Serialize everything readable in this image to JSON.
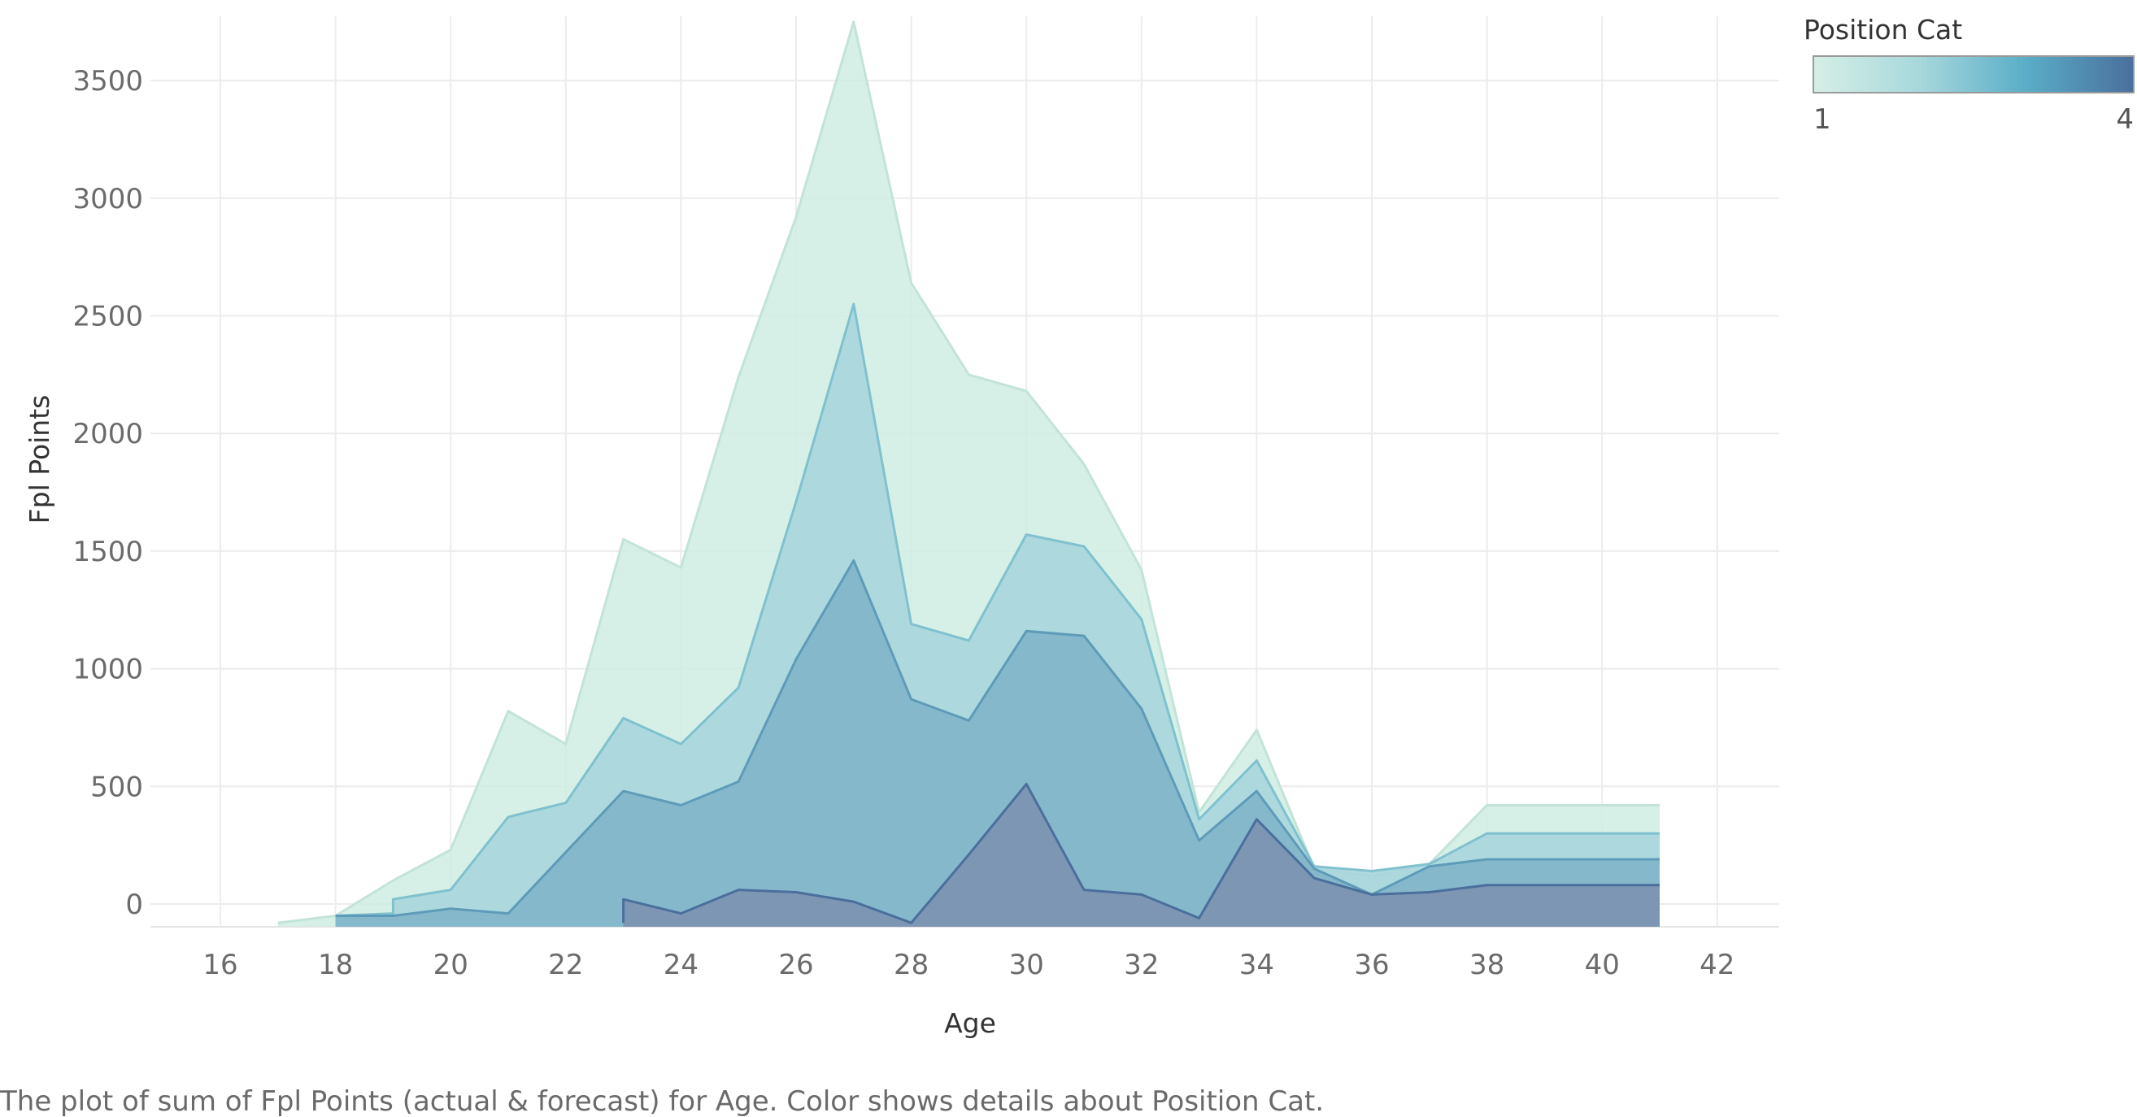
{
  "chart_data": {
    "type": "area",
    "xlabel": "Age",
    "ylabel": "Fpl Points",
    "xlim": [
      15,
      43
    ],
    "ylim": [
      -80,
      3800
    ],
    "x_ticks": [
      16,
      18,
      20,
      22,
      24,
      26,
      28,
      30,
      32,
      34,
      36,
      38,
      40,
      42
    ],
    "y_ticks": [
      0,
      500,
      1000,
      1500,
      2000,
      2500,
      3000,
      3500
    ],
    "grid": true,
    "legend": {
      "title": "Position Cat",
      "type": "continuous",
      "min_label": "1",
      "max_label": "4",
      "placement": "top-right",
      "colors": [
        "#d5efe6",
        "#a8d8dc",
        "#5aaec8",
        "#4a6f9c"
      ]
    },
    "series": [
      {
        "name": "1",
        "fill": "#d0ede3",
        "stroke": "#c2e3d9",
        "points": [
          [
            17,
            -80
          ],
          [
            18,
            -50
          ],
          [
            19,
            100
          ],
          [
            20,
            230
          ],
          [
            21,
            820
          ],
          [
            22,
            680
          ],
          [
            23,
            1550
          ],
          [
            24,
            1430
          ],
          [
            25,
            2240
          ],
          [
            26,
            2920
          ],
          [
            27,
            3750
          ],
          [
            28,
            2640
          ],
          [
            29,
            2250
          ],
          [
            30,
            2180
          ],
          [
            31,
            1870
          ],
          [
            32,
            1420
          ],
          [
            33,
            390
          ],
          [
            34,
            740
          ],
          [
            35,
            150
          ],
          [
            36,
            120
          ],
          [
            37,
            170
          ],
          [
            38,
            420
          ],
          [
            39,
            420
          ],
          [
            40,
            420
          ],
          [
            41,
            420
          ]
        ]
      },
      {
        "name": "2",
        "fill": "#a6d5dc",
        "stroke": "#80c1cf",
        "points": [
          [
            18,
            -50
          ],
          [
            19,
            -40
          ],
          [
            19,
            20
          ],
          [
            20,
            60
          ],
          [
            21,
            370
          ],
          [
            22,
            430
          ],
          [
            23,
            790
          ],
          [
            24,
            680
          ],
          [
            25,
            920
          ],
          [
            26,
            1710
          ],
          [
            27,
            2550
          ],
          [
            28,
            1190
          ],
          [
            29,
            1120
          ],
          [
            30,
            1570
          ],
          [
            31,
            1520
          ],
          [
            32,
            1210
          ],
          [
            33,
            360
          ],
          [
            34,
            610
          ],
          [
            35,
            160
          ],
          [
            36,
            140
          ],
          [
            37,
            170
          ],
          [
            38,
            300
          ],
          [
            39,
            300
          ],
          [
            40,
            300
          ],
          [
            41,
            300
          ]
        ]
      },
      {
        "name": "3",
        "fill": "#7fb2c9",
        "stroke": "#5e9bb8",
        "points": [
          [
            18,
            -50
          ],
          [
            19,
            -50
          ],
          [
            20,
            -20
          ],
          [
            21,
            -40
          ],
          [
            22,
            220
          ],
          [
            23,
            480
          ],
          [
            24,
            420
          ],
          [
            25,
            520
          ],
          [
            26,
            1040
          ],
          [
            27,
            1460
          ],
          [
            28,
            870
          ],
          [
            29,
            780
          ],
          [
            30,
            1160
          ],
          [
            31,
            1140
          ],
          [
            32,
            830
          ],
          [
            33,
            270
          ],
          [
            34,
            480
          ],
          [
            35,
            150
          ],
          [
            36,
            40
          ],
          [
            37,
            160
          ],
          [
            38,
            190
          ],
          [
            39,
            190
          ],
          [
            40,
            190
          ],
          [
            41,
            190
          ]
        ]
      },
      {
        "name": "4",
        "fill": "#7b8fae",
        "stroke": "#4a6f9c",
        "points": [
          [
            23,
            -80
          ],
          [
            23,
            20
          ],
          [
            24,
            -40
          ],
          [
            25,
            60
          ],
          [
            26,
            50
          ],
          [
            27,
            10
          ],
          [
            28,
            -80
          ],
          [
            29,
            210
          ],
          [
            30,
            510
          ],
          [
            31,
            60
          ],
          [
            32,
            40
          ],
          [
            33,
            -60
          ],
          [
            34,
            360
          ],
          [
            35,
            110
          ],
          [
            36,
            40
          ],
          [
            37,
            50
          ],
          [
            38,
            80
          ],
          [
            39,
            80
          ],
          [
            40,
            80
          ],
          [
            41,
            80
          ]
        ]
      }
    ]
  },
  "caption": "The plot of sum of Fpl Points (actual & forecast)  for Age.  Color shows details about Position Cat."
}
